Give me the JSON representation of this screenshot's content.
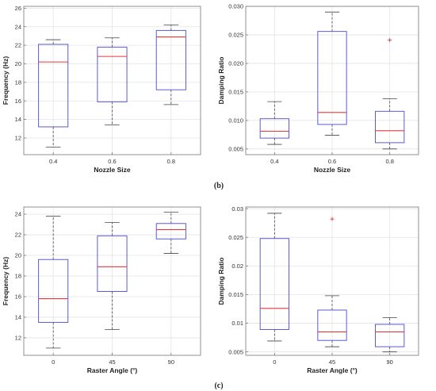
{
  "panel_labels": [
    "(b)",
    "(c)"
  ],
  "colors": {
    "box": "#5b5bd6",
    "median": "#e23a3a",
    "whisker": "#444444",
    "outlier": "#e23a3a",
    "grid": "#e3e3e3",
    "axis": "#777777"
  },
  "chart_data": [
    {
      "type": "box",
      "xlabel": "Nozzle Size",
      "ylabel": "Frequency (Hz)",
      "categories": [
        "0.4",
        "0.6",
        "0.8"
      ],
      "ylim": [
        10.2,
        26.2
      ],
      "yticks": [
        12,
        14,
        16,
        18,
        20,
        22,
        24,
        26
      ],
      "ytick_labels": [
        "12",
        "14",
        "16",
        "18",
        "20",
        "22",
        "24",
        "26"
      ],
      "grid": true,
      "boxes": [
        {
          "min": 11.0,
          "q1": 13.2,
          "median": 20.2,
          "q3": 22.1,
          "max": 22.6,
          "outliers": []
        },
        {
          "min": 13.4,
          "q1": 15.9,
          "median": 20.8,
          "q3": 21.8,
          "max": 22.8,
          "outliers": []
        },
        {
          "min": 15.6,
          "q1": 17.2,
          "median": 22.9,
          "q3": 23.6,
          "max": 24.2,
          "outliers": []
        }
      ]
    },
    {
      "type": "box",
      "xlabel": "Nozzle Size",
      "ylabel": "Damping Ratio",
      "categories": [
        "0.4",
        "0.6",
        "0.8"
      ],
      "ylim": [
        0.004,
        0.03
      ],
      "yticks": [
        0.005,
        0.01,
        0.015,
        0.02,
        0.025,
        0.03
      ],
      "ytick_labels": [
        "0.005",
        "0.010",
        "0.015",
        "0.020",
        "0.025",
        "0.030"
      ],
      "grid": true,
      "boxes": [
        {
          "min": 0.0058,
          "q1": 0.0069,
          "median": 0.0081,
          "q3": 0.0103,
          "max": 0.0133,
          "outliers": []
        },
        {
          "min": 0.0074,
          "q1": 0.0093,
          "median": 0.0114,
          "q3": 0.0256,
          "max": 0.029,
          "outliers": []
        },
        {
          "min": 0.005,
          "q1": 0.0061,
          "median": 0.0082,
          "q3": 0.0116,
          "max": 0.0138,
          "outliers": [
            0.0241
          ]
        }
      ]
    },
    {
      "type": "box",
      "xlabel": "Raster Angle (°)",
      "ylabel": "Frequency (Hz)",
      "categories": [
        "0",
        "45",
        "90"
      ],
      "ylim": [
        10.3,
        24.7
      ],
      "yticks": [
        12,
        14,
        16,
        18,
        20,
        22,
        24
      ],
      "ytick_labels": [
        "12",
        "14",
        "16",
        "18",
        "20",
        "22",
        "24"
      ],
      "grid": true,
      "boxes": [
        {
          "min": 11.0,
          "q1": 13.5,
          "median": 15.8,
          "q3": 19.6,
          "max": 23.8,
          "outliers": []
        },
        {
          "min": 12.8,
          "q1": 16.5,
          "median": 18.9,
          "q3": 21.9,
          "max": 23.2,
          "outliers": []
        },
        {
          "min": 20.2,
          "q1": 21.6,
          "median": 22.5,
          "q3": 23.1,
          "max": 24.2,
          "outliers": []
        }
      ]
    },
    {
      "type": "box",
      "xlabel": "Raster Angle (°)",
      "ylabel": "Damping Ratio",
      "categories": [
        "0",
        "45",
        "90"
      ],
      "ylim": [
        0.0044,
        0.0303
      ],
      "yticks": [
        0.005,
        0.01,
        0.015,
        0.02,
        0.025,
        0.03
      ],
      "ytick_labels": [
        "0.005",
        "0.01",
        "0.015",
        "0.02",
        "0.025",
        "0.03"
      ],
      "grid": true,
      "boxes": [
        {
          "min": 0.0069,
          "q1": 0.0089,
          "median": 0.0126,
          "q3": 0.0248,
          "max": 0.0292,
          "outliers": []
        },
        {
          "min": 0.0059,
          "q1": 0.007,
          "median": 0.0085,
          "q3": 0.0123,
          "max": 0.0148,
          "outliers": [
            0.0282
          ]
        },
        {
          "min": 0.005,
          "q1": 0.0059,
          "median": 0.0085,
          "q3": 0.0098,
          "max": 0.011,
          "outliers": []
        }
      ]
    }
  ]
}
